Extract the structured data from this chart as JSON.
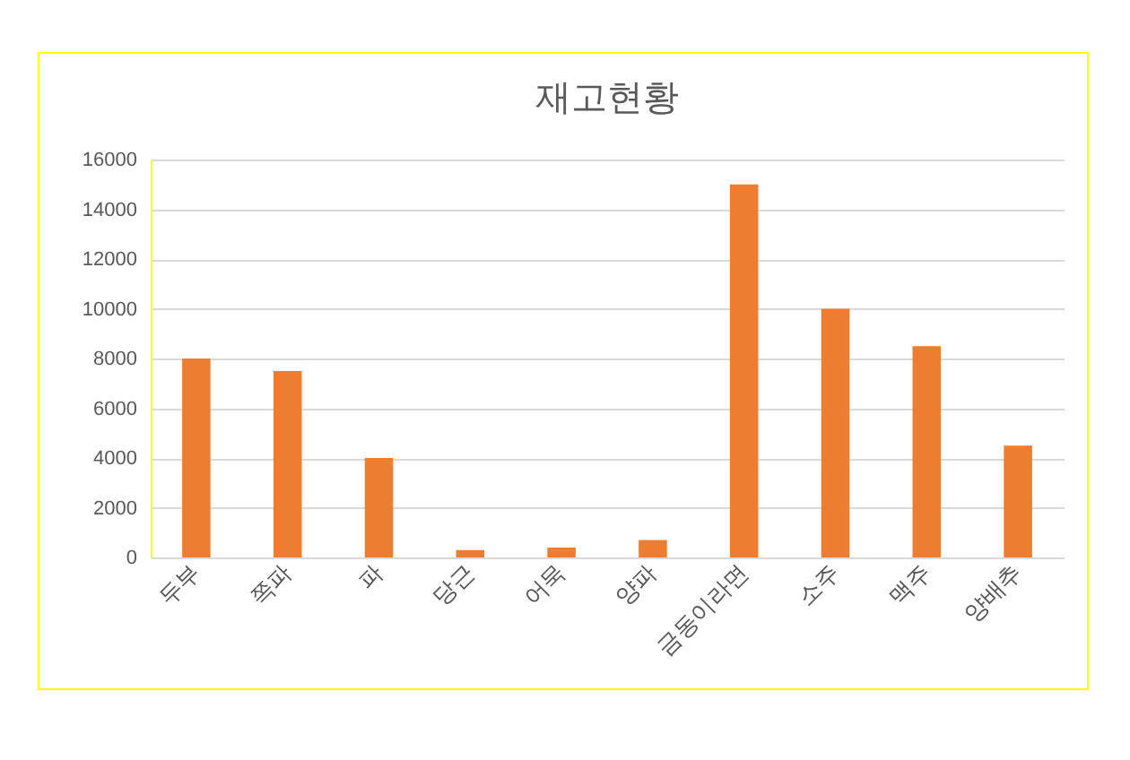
{
  "chart_data": {
    "type": "bar",
    "title": "재고현황",
    "categories": [
      "두부",
      "쪽파",
      "파",
      "당근",
      "어묵",
      "양파",
      "금동이라면",
      "소주",
      "맥주",
      "양배추"
    ],
    "values": [
      8000,
      7500,
      4000,
      300,
      400,
      700,
      15000,
      10000,
      8500,
      4500
    ],
    "color": "#ed7d31",
    "ylim": [
      0,
      16000
    ],
    "yticks": [
      0,
      2000,
      4000,
      6000,
      8000,
      10000,
      12000,
      14000,
      16000
    ],
    "grid": "y"
  }
}
